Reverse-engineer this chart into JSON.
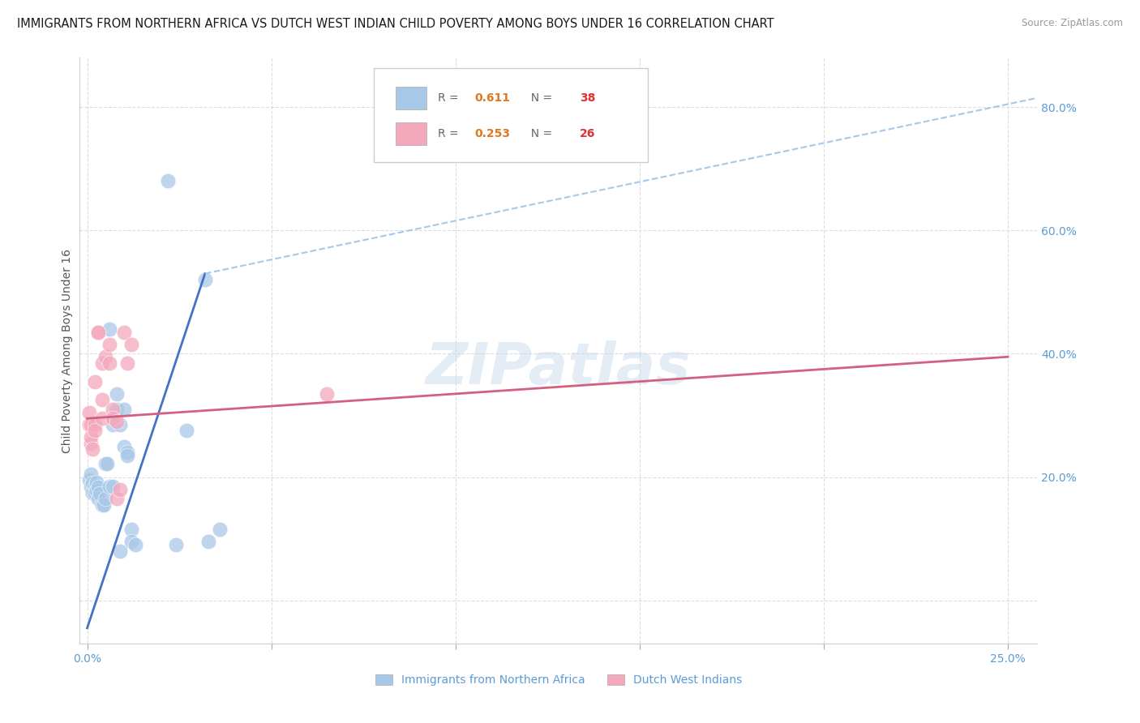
{
  "title": "IMMIGRANTS FROM NORTHERN AFRICA VS DUTCH WEST INDIAN CHILD POVERTY AMONG BOYS UNDER 16 CORRELATION CHART",
  "source": "Source: ZipAtlas.com",
  "ylabel": "Child Poverty Among Boys Under 16",
  "xlim": [
    -0.002,
    0.258
  ],
  "ylim": [
    -0.07,
    0.88
  ],
  "xticks": [
    0.0,
    0.05,
    0.1,
    0.15,
    0.2,
    0.25
  ],
  "xticklabels": [
    "0.0%",
    "",
    "",
    "",
    "",
    "25.0%"
  ],
  "yticks": [
    0.0,
    0.2,
    0.4,
    0.6,
    0.8
  ],
  "yticklabels": [
    "",
    "20.0%",
    "40.0%",
    "60.0%",
    "80.0%"
  ],
  "blue_color": "#A8C8E8",
  "pink_color": "#F4A8BC",
  "blue_line_color": "#4472C4",
  "pink_line_color": "#D46080",
  "dashed_color": "#A8C8E8",
  "blue_R": "0.611",
  "blue_N": "38",
  "pink_R": "0.253",
  "pink_N": "26",
  "R_color": "#E07820",
  "N_color": "#E03030",
  "watermark": "ZIPatlas",
  "blue_scatter": [
    [
      0.0005,
      0.195
    ],
    [
      0.001,
      0.205
    ],
    [
      0.001,
      0.185
    ],
    [
      0.0015,
      0.19
    ],
    [
      0.0015,
      0.175
    ],
    [
      0.002,
      0.185
    ],
    [
      0.002,
      0.175
    ],
    [
      0.0025,
      0.192
    ],
    [
      0.0025,
      0.178
    ],
    [
      0.003,
      0.183
    ],
    [
      0.003,
      0.165
    ],
    [
      0.0035,
      0.173
    ],
    [
      0.004,
      0.155
    ],
    [
      0.0045,
      0.155
    ],
    [
      0.005,
      0.165
    ],
    [
      0.005,
      0.222
    ],
    [
      0.0055,
      0.222
    ],
    [
      0.006,
      0.44
    ],
    [
      0.006,
      0.185
    ],
    [
      0.007,
      0.185
    ],
    [
      0.007,
      0.285
    ],
    [
      0.008,
      0.335
    ],
    [
      0.008,
      0.31
    ],
    [
      0.009,
      0.08
    ],
    [
      0.009,
      0.285
    ],
    [
      0.01,
      0.31
    ],
    [
      0.01,
      0.25
    ],
    [
      0.011,
      0.24
    ],
    [
      0.011,
      0.235
    ],
    [
      0.012,
      0.115
    ],
    [
      0.012,
      0.095
    ],
    [
      0.013,
      0.09
    ],
    [
      0.022,
      0.68
    ],
    [
      0.024,
      0.09
    ],
    [
      0.027,
      0.275
    ],
    [
      0.032,
      0.52
    ],
    [
      0.033,
      0.095
    ],
    [
      0.036,
      0.115
    ]
  ],
  "pink_scatter": [
    [
      0.0005,
      0.305
    ],
    [
      0.0005,
      0.285
    ],
    [
      0.001,
      0.255
    ],
    [
      0.001,
      0.265
    ],
    [
      0.001,
      0.285
    ],
    [
      0.0015,
      0.245
    ],
    [
      0.002,
      0.355
    ],
    [
      0.002,
      0.285
    ],
    [
      0.002,
      0.275
    ],
    [
      0.003,
      0.435
    ],
    [
      0.003,
      0.435
    ],
    [
      0.004,
      0.385
    ],
    [
      0.004,
      0.325
    ],
    [
      0.004,
      0.295
    ],
    [
      0.005,
      0.395
    ],
    [
      0.006,
      0.385
    ],
    [
      0.006,
      0.415
    ],
    [
      0.007,
      0.31
    ],
    [
      0.007,
      0.295
    ],
    [
      0.008,
      0.29
    ],
    [
      0.008,
      0.165
    ],
    [
      0.009,
      0.18
    ],
    [
      0.01,
      0.435
    ],
    [
      0.011,
      0.385
    ],
    [
      0.012,
      0.415
    ],
    [
      0.065,
      0.335
    ]
  ],
  "blue_line": [
    [
      0.0,
      -0.045
    ],
    [
      0.032,
      0.53
    ]
  ],
  "pink_line": [
    [
      0.0,
      0.295
    ],
    [
      0.25,
      0.395
    ]
  ],
  "dashed_line": [
    [
      0.032,
      0.53
    ],
    [
      0.258,
      0.815
    ]
  ],
  "background": "#FFFFFF",
  "grid_color": "#DDDDDD",
  "tick_label_color": "#5B9BD5",
  "ylabel_color": "#555555",
  "title_color": "#1A1A1A",
  "title_fontsize": 10.5,
  "source_fontsize": 8.5,
  "tick_fontsize": 10,
  "ylabel_fontsize": 10
}
